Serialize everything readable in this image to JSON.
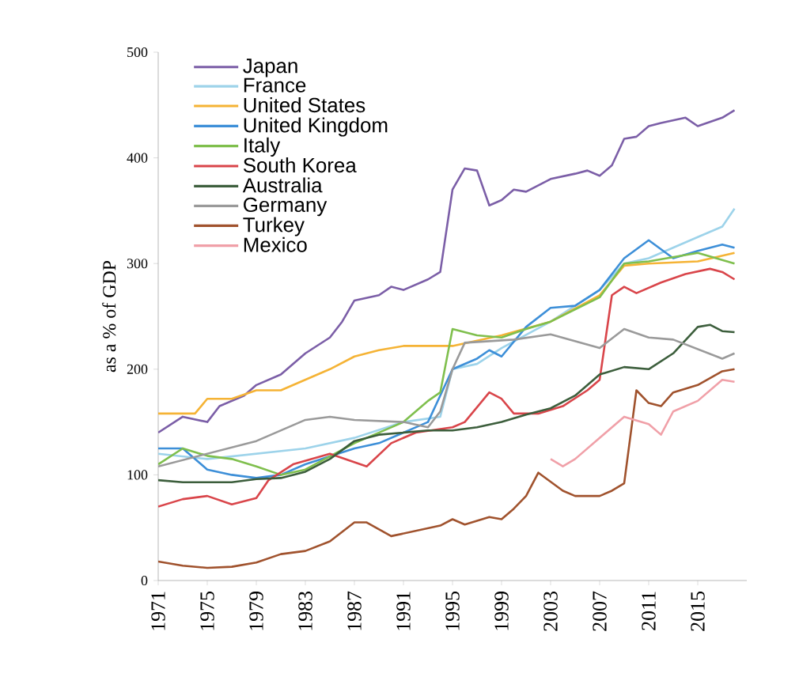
{
  "chart_data": {
    "type": "line",
    "ylabel": "as a % of GDP",
    "xlim": [
      1971,
      2019
    ],
    "ylim": [
      0,
      500
    ],
    "xticks": [
      1971,
      1975,
      1979,
      1983,
      1987,
      1991,
      1995,
      1999,
      2003,
      2007,
      2011,
      2015
    ],
    "yticks": [
      0,
      100,
      200,
      300,
      400,
      500
    ],
    "legend": "top left",
    "grid": false,
    "marker": "none",
    "line_style": "solid",
    "series": [
      {
        "name": "Japan",
        "color": "#7b5ea7",
        "x": [
          1971,
          1973,
          1975,
          1976,
          1978,
          1979,
          1981,
          1983,
          1985,
          1986,
          1987,
          1989,
          1990,
          1991,
          1993,
          1994,
          1995,
          1996,
          1997,
          1998,
          1999,
          2000,
          2001,
          2003,
          2005,
          2006,
          2007,
          2008,
          2009,
          2010,
          2011,
          2012,
          2014,
          2015,
          2017,
          2018
        ],
        "values": [
          140,
          155,
          150,
          165,
          175,
          185,
          195,
          215,
          230,
          245,
          265,
          270,
          278,
          275,
          285,
          292,
          370,
          390,
          388,
          355,
          360,
          370,
          368,
          380,
          385,
          388,
          383,
          393,
          418,
          420,
          430,
          433,
          438,
          430,
          438,
          445
        ]
      },
      {
        "name": "France",
        "color": "#9dd3ea",
        "x": [
          1971,
          1975,
          1979,
          1983,
          1987,
          1991,
          1994,
          1995,
          1997,
          1999,
          2003,
          2007,
          2009,
          2011,
          2015,
          2017,
          2018
        ],
        "values": [
          120,
          115,
          120,
          125,
          135,
          150,
          155,
          200,
          205,
          220,
          245,
          275,
          300,
          305,
          325,
          335,
          352
        ]
      },
      {
        "name": "United States",
        "color": "#f5b335",
        "x": [
          1971,
          1974,
          1975,
          1977,
          1979,
          1981,
          1983,
          1985,
          1987,
          1989,
          1991,
          1995,
          1999,
          2003,
          2007,
          2009,
          2011,
          2015,
          2018
        ],
        "values": [
          158,
          158,
          172,
          172,
          180,
          180,
          190,
          200,
          212,
          218,
          222,
          222,
          232,
          245,
          270,
          298,
          300,
          302,
          310
        ]
      },
      {
        "name": "United Kingdom",
        "color": "#3d8fd8",
        "x": [
          1971,
          1973,
          1975,
          1977,
          1979,
          1981,
          1983,
          1987,
          1989,
          1991,
          1993,
          1995,
          1997,
          1998,
          1999,
          2001,
          2003,
          2005,
          2007,
          2009,
          2011,
          2013,
          2015,
          2017,
          2018
        ],
        "values": [
          125,
          125,
          105,
          100,
          97,
          100,
          110,
          125,
          130,
          140,
          150,
          200,
          210,
          218,
          212,
          240,
          258,
          260,
          275,
          305,
          322,
          305,
          312,
          318,
          315
        ]
      },
      {
        "name": "Italy",
        "color": "#7fbf4d",
        "x": [
          1971,
          1973,
          1975,
          1977,
          1979,
          1981,
          1983,
          1987,
          1991,
          1993,
          1994,
          1995,
          1997,
          1999,
          2001,
          2003,
          2007,
          2009,
          2011,
          2015,
          2018
        ],
        "values": [
          110,
          125,
          118,
          115,
          108,
          100,
          105,
          130,
          150,
          170,
          178,
          238,
          232,
          230,
          238,
          245,
          268,
          300,
          302,
          310,
          300
        ]
      },
      {
        "name": "South Korea",
        "color": "#d9454a",
        "x": [
          1971,
          1973,
          1975,
          1977,
          1979,
          1980,
          1982,
          1985,
          1988,
          1990,
          1992,
          1995,
          1996,
          1998,
          1999,
          2000,
          2002,
          2004,
          2006,
          2007,
          2008,
          2009,
          2010,
          2012,
          2014,
          2016,
          2017,
          2018
        ],
        "values": [
          70,
          77,
          80,
          72,
          78,
          95,
          110,
          120,
          108,
          130,
          140,
          145,
          150,
          178,
          172,
          158,
          158,
          165,
          180,
          190,
          270,
          278,
          272,
          282,
          290,
          295,
          292,
          285
        ]
      },
      {
        "name": "Australia",
        "color": "#3c5e3c",
        "x": [
          1971,
          1973,
          1977,
          1979,
          1981,
          1983,
          1985,
          1987,
          1989,
          1991,
          1993,
          1995,
          1997,
          1999,
          2001,
          2003,
          2005,
          2007,
          2009,
          2011,
          2013,
          2015,
          2016,
          2017,
          2018
        ],
        "values": [
          95,
          93,
          93,
          96,
          97,
          103,
          115,
          132,
          138,
          140,
          142,
          142,
          145,
          150,
          157,
          163,
          175,
          195,
          202,
          200,
          215,
          240,
          242,
          236,
          235
        ]
      },
      {
        "name": "Germany",
        "color": "#9a9a9a",
        "x": [
          1971,
          1975,
          1979,
          1983,
          1985,
          1987,
          1991,
          1993,
          1994,
          1995,
          1996,
          2000,
          2003,
          2007,
          2009,
          2011,
          2013,
          2017,
          2018
        ],
        "values": [
          108,
          120,
          132,
          152,
          155,
          152,
          150,
          145,
          160,
          200,
          225,
          228,
          233,
          220,
          238,
          230,
          228,
          210,
          215
        ]
      },
      {
        "name": "Turkey",
        "color": "#a0522d",
        "x": [
          1971,
          1973,
          1975,
          1977,
          1979,
          1981,
          1983,
          1985,
          1987,
          1988,
          1990,
          1992,
          1994,
          1995,
          1996,
          1998,
          1999,
          2000,
          2001,
          2002,
          2004,
          2005,
          2007,
          2008,
          2009,
          2010,
          2011,
          2012,
          2013,
          2015,
          2017,
          2018
        ],
        "values": [
          18,
          14,
          12,
          13,
          17,
          25,
          28,
          37,
          55,
          55,
          42,
          47,
          52,
          58,
          53,
          60,
          58,
          68,
          80,
          102,
          85,
          80,
          80,
          85,
          92,
          180,
          168,
          165,
          178,
          185,
          198,
          200
        ]
      },
      {
        "name": "Mexico",
        "color": "#f0a0a8",
        "x": [
          2003,
          2004,
          2005,
          2007,
          2009,
          2011,
          2012,
          2013,
          2015,
          2017,
          2018
        ],
        "values": [
          115,
          108,
          115,
          135,
          155,
          148,
          138,
          160,
          170,
          190,
          188
        ]
      }
    ]
  }
}
